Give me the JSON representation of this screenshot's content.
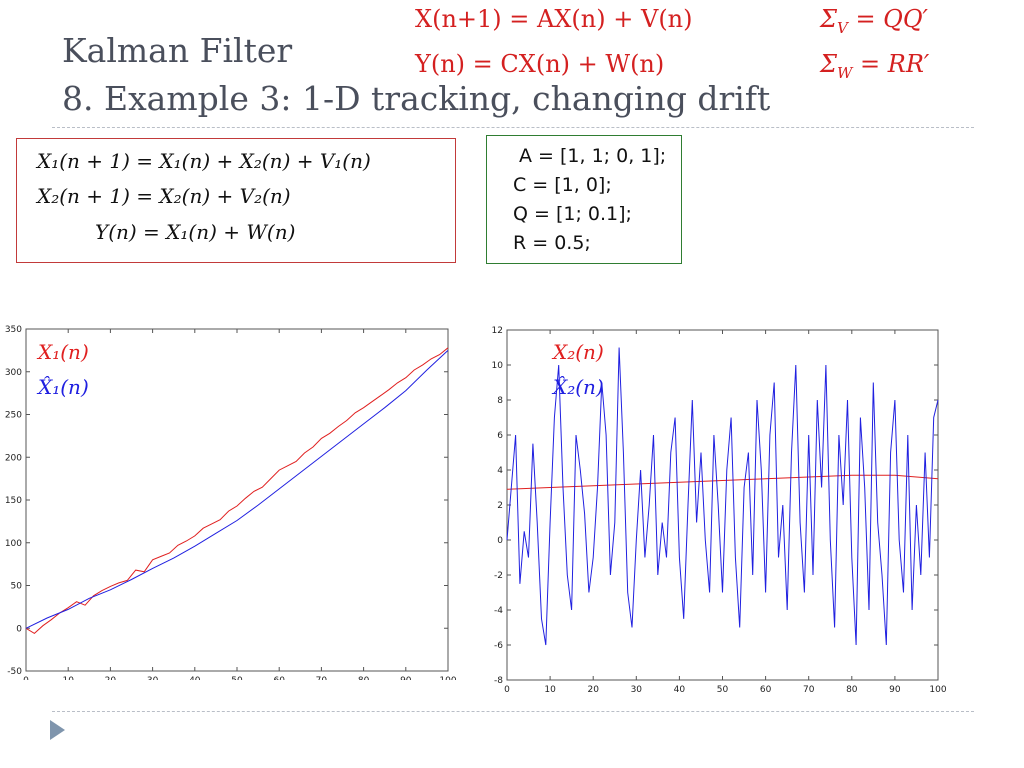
{
  "slide": {
    "title_line1": "Kalman Filter",
    "title_line2": "8. Example 3: 1-D tracking, changing drift",
    "state_equation": "X(n+1) = AX(n) + V(n)",
    "obs_equation": "Y(n) = CX(n) + W(n)",
    "sigma_v": {
      "lhs": "Σ",
      "sub": "V",
      "rhs": " = QQ′"
    },
    "sigma_w": {
      "lhs": "Σ",
      "sub": "W",
      "rhs": " = RR′"
    }
  },
  "equations_box": {
    "lines": [
      "X₁(n + 1) = X₁(n) + X₂(n) + V₁(n)",
      "X₂(n + 1) = X₂(n) + V₂(n)",
      "Y(n) = X₁(n) + W(n)"
    ]
  },
  "params_box": {
    "lines": [
      "A = [1, 1; 0, 1];",
      "C = [1, 0];",
      "Q = [1; 0.1];",
      "R = 0.5;"
    ]
  },
  "colors": {
    "red": "#e02020",
    "blue": "#2020e0",
    "box_red": "#c23a3a",
    "box_green": "#2f7d32",
    "title": "#4a4f5c"
  },
  "icons": {
    "bullet": "play-triangle-icon"
  },
  "chart_data": [
    {
      "type": "line",
      "xlim": [
        0,
        100
      ],
      "ylim": [
        -50,
        350
      ],
      "xticks": [
        0,
        10,
        20,
        30,
        40,
        50,
        60,
        70,
        80,
        90,
        100
      ],
      "yticks": [
        -50,
        0,
        50,
        100,
        150,
        200,
        250,
        300,
        350
      ],
      "legend": [
        "X₁(n)",
        "X̂₁(n)"
      ],
      "series": [
        {
          "name": "X₁(n)",
          "color": "#e02020",
          "x": [
            0,
            2,
            4,
            6,
            8,
            10,
            12,
            14,
            16,
            18,
            20,
            22,
            24,
            26,
            28,
            30,
            32,
            34,
            36,
            38,
            40,
            42,
            44,
            46,
            48,
            50,
            52,
            54,
            56,
            58,
            60,
            62,
            64,
            66,
            68,
            70,
            72,
            74,
            76,
            78,
            80,
            82,
            84,
            86,
            88,
            90,
            92,
            94,
            96,
            98,
            100
          ],
          "values": [
            0,
            -6,
            3,
            10,
            18,
            24,
            31,
            27,
            38,
            44,
            49,
            53,
            56,
            68,
            66,
            80,
            84,
            88,
            97,
            102,
            108,
            117,
            122,
            127,
            137,
            143,
            152,
            160,
            165,
            175,
            185,
            190,
            195,
            205,
            212,
            222,
            228,
            236,
            243,
            252,
            258,
            265,
            272,
            279,
            287,
            293,
            302,
            308,
            315,
            320,
            328
          ]
        },
        {
          "name": "X̂₁(n)",
          "color": "#2020e0",
          "x": [
            0,
            5,
            10,
            15,
            20,
            25,
            30,
            35,
            40,
            45,
            50,
            55,
            60,
            65,
            70,
            75,
            80,
            85,
            90,
            95,
            100
          ],
          "values": [
            0,
            12,
            22,
            35,
            45,
            57,
            70,
            82,
            96,
            111,
            126,
            144,
            163,
            182,
            201,
            220,
            239,
            258,
            278,
            302,
            325
          ]
        }
      ]
    },
    {
      "type": "line",
      "xlim": [
        0,
        100
      ],
      "ylim": [
        -8,
        12
      ],
      "xticks": [
        0,
        10,
        20,
        30,
        40,
        50,
        60,
        70,
        80,
        90,
        100
      ],
      "yticks": [
        -8,
        -6,
        -4,
        -2,
        0,
        2,
        4,
        6,
        8,
        10,
        12
      ],
      "legend": [
        "X₂(n)",
        "X̂₂(n)"
      ],
      "series": [
        {
          "name": "X₂(n)",
          "color": "#e02020",
          "x": [
            0,
            10,
            20,
            30,
            40,
            50,
            60,
            70,
            80,
            90,
            100
          ],
          "values": [
            2.9,
            3.0,
            3.1,
            3.2,
            3.3,
            3.4,
            3.5,
            3.6,
            3.7,
            3.7,
            3.5
          ]
        },
        {
          "name": "X̂₂(n)",
          "color": "#2020e0",
          "x": [
            0,
            1,
            2,
            3,
            4,
            5,
            6,
            7,
            8,
            9,
            10,
            11,
            12,
            13,
            14,
            15,
            16,
            17,
            18,
            19,
            20,
            21,
            22,
            23,
            24,
            25,
            26,
            27,
            28,
            29,
            30,
            31,
            32,
            33,
            34,
            35,
            36,
            37,
            38,
            39,
            40,
            41,
            42,
            43,
            44,
            45,
            46,
            47,
            48,
            49,
            50,
            51,
            52,
            53,
            54,
            55,
            56,
            57,
            58,
            59,
            60,
            61,
            62,
            63,
            64,
            65,
            66,
            67,
            68,
            69,
            70,
            71,
            72,
            73,
            74,
            75,
            76,
            77,
            78,
            79,
            80,
            81,
            82,
            83,
            84,
            85,
            86,
            87,
            88,
            89,
            90,
            91,
            92,
            93,
            94,
            95,
            96,
            97,
            98,
            99,
            100
          ],
          "values": [
            0,
            3,
            6,
            -2.5,
            0.5,
            -1,
            5.5,
            1,
            -4.5,
            -6,
            1,
            7,
            10,
            3,
            -2,
            -4,
            6,
            4,
            1.5,
            -3,
            -1,
            3,
            9,
            6,
            -2,
            1,
            11,
            5,
            -3,
            -5,
            0,
            4,
            -1,
            2,
            6,
            -2,
            1,
            -1,
            5,
            7,
            -1,
            -4.5,
            2,
            8,
            1,
            5,
            0,
            -3,
            6,
            2,
            -3,
            4,
            7,
            -1,
            -5,
            3,
            5,
            -2,
            8,
            4,
            -3,
            6,
            9,
            -1,
            2,
            -4,
            5,
            10,
            1,
            -3,
            6,
            -2,
            8,
            3,
            10,
            0,
            -5,
            6,
            2,
            8,
            -1,
            -6,
            7,
            3,
            -4,
            9,
            1,
            -2,
            -6,
            5,
            8,
            0,
            -3,
            6,
            -4,
            2,
            -2,
            5,
            -1,
            7,
            8
          ]
        }
      ]
    }
  ]
}
